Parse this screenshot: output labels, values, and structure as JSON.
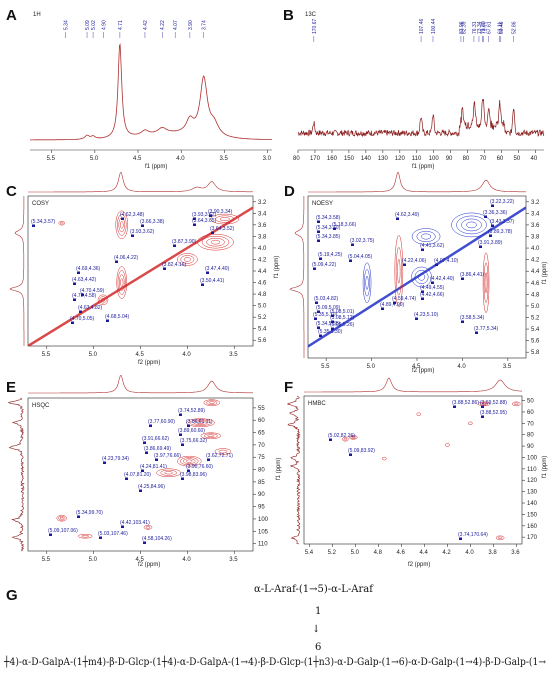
{
  "panels": {
    "A": {
      "letter": "A",
      "name": "1H",
      "xlabel": "f1 (ppm)",
      "ticks": [
        "5.5",
        "5.0",
        "4.5",
        "4.0",
        "3.5",
        "3.0"
      ],
      "shifts": [
        "5.34",
        "5.09",
        "5.02",
        "4.90",
        "4.71",
        "4.42",
        "4.22",
        "4.07",
        "3.90",
        "3.74"
      ]
    },
    "B": {
      "letter": "B",
      "name": "13C",
      "xlabel": "f1 (ppm)",
      "ticks": [
        "80",
        "170",
        "160",
        "150",
        "140",
        "130",
        "120",
        "110",
        "100",
        "90",
        "80",
        "70",
        "60",
        "50",
        "40"
      ],
      "shifts": [
        "170.67",
        "107.46",
        "100.44",
        "83.96",
        "82.39",
        "76.31",
        "73.34",
        "71.30",
        "70.60",
        "67.61",
        "61.11",
        "60.46",
        "52.86"
      ]
    },
    "C": {
      "letter": "C",
      "name": "COSY",
      "xlabel": "f2 (ppm)",
      "ylabel": "f1 (ppm)",
      "xticks": [
        "5.5",
        "5.0",
        "4.5",
        "4.0",
        "3.5"
      ],
      "yticks": [
        "3.2",
        "3.4",
        "3.6",
        "3.8",
        "4.0",
        "4.2",
        "4.4",
        "4.6",
        "4.8",
        "5.0",
        "5.2",
        "5.4",
        "5.6"
      ],
      "peaks": [
        "(5.34,3.57)",
        "(4.62,3.48)",
        "(3.66,3.38)",
        "(3.93,3.62)",
        "(3.64,3.65)",
        "(3.87,3.90)",
        "(4.06,4.22)",
        "(3.82,4.16)",
        "(3.47,4.40)",
        "(4.69,4.36)",
        "(4.63,4.42)",
        "(3.50,4.41)",
        "(4.72,4.58)",
        "(4.70,4.59)",
        "(4.63,4.82)",
        "(4.70,5.05)",
        "(4.68,5.04)",
        "(3.90,3.34)",
        "(3.93,3.62)",
        "(3.64,3.52)"
      ]
    },
    "D": {
      "letter": "D",
      "name": "NOESY",
      "xlabel": "f2 (ppm)",
      "ylabel": "f1 (ppm)",
      "xticks": [
        "5.5",
        "5.0",
        "4.5",
        "4.0",
        "3.5"
      ],
      "yticks": [
        "3.2",
        "3.4",
        "3.6",
        "3.8",
        "4.0",
        "4.2",
        "4.4",
        "4.6",
        "4.8",
        "5.0",
        "5.2",
        "5.4",
        "5.6",
        "5.8"
      ],
      "peaks": [
        "(3.22,3.22)",
        "(4.62,3.49)",
        "(5.34,3.58)",
        "(3.36,3.36)",
        "(3.43,3.37)",
        "(5.18,3.66)",
        "(5.34,3.70)",
        "(3.89,3.78)",
        "(5.34,3.85)",
        "(3.02,3.75)",
        "(3.91,3.89)",
        "(4.41,3.62)",
        "(5.19,4.25)",
        "(5.09,4.22)",
        "(5.04,4.05)",
        "(4.22,4.06)",
        "(4.07,4.10)",
        "(3.86,4.41)",
        "(4.42,4.40)",
        "(4.49,4.55)",
        "(4.42,4.66)",
        "(4.59,4.74)",
        "(5.03,4.82)",
        "(5.09,5.09)",
        "(5.35,5.10)",
        "(5.34,5.35)",
        "(5.08,5.01)",
        "(5.08,5.12)",
        "(5.09,5.26)",
        "(4.89,4.90)",
        "(5.35,5.30)",
        "(3.77,5.34)",
        "(3.58,5.34)",
        "(4.23,5.10)"
      ]
    },
    "E": {
      "letter": "E",
      "name": "HSQC",
      "xlabel": "f2 (ppm)",
      "ylabel": "f1 (ppm)",
      "xticks": [
        "5.5",
        "5.0",
        "4.5",
        "4.0",
        "3.5"
      ],
      "yticks": [
        "55",
        "60",
        "65",
        "70",
        "75",
        "80",
        "85",
        "90",
        "95",
        "100",
        "105",
        "110"
      ],
      "peaks": [
        "(3.74,52.89)",
        "(3.77,60.90)",
        "(3.86,61.11)",
        "(3.89,60.60)",
        "(3.91,66.62)",
        "(3.75,66.32)",
        "(3.86,69.49)",
        "(3.97,76.66)",
        "(4.23,79.34)",
        "(4.24,81.41)",
        "(3.90,76.60)",
        "(3.98,83.96)",
        "(4.07,81.20)",
        "(3.62,72.71)",
        "(4.25,84.96)",
        "(5.34,99.70)",
        "(4.42,103.41)",
        "(5.09,107.06)",
        "(5.03,107.46)",
        "(4.58,104.26)"
      ]
    },
    "F": {
      "letter": "F",
      "name": "HMBC",
      "xlabel": "f2 (ppm)",
      "ylabel": "f1 (ppm)",
      "xticks": [
        "5.4",
        "5.2",
        "5.0",
        "4.8",
        "4.6",
        "4.4",
        "4.2",
        "4.0",
        "3.8",
        "3.6"
      ],
      "yticks": [
        "50",
        "60",
        "70",
        "80",
        "90",
        "100",
        "110",
        "120",
        "130",
        "140",
        "150",
        "160",
        "170"
      ],
      "peaks": [
        "(3.88,52.86)",
        "(3.59,52.88)",
        "(3.88,52.95)",
        "(5.02,82.26)",
        "(5.09,83.92)",
        "(3.74,170.64)"
      ]
    },
    "G": {
      "letter": "G",
      "side_chain": "α-L-Araf-(1→5)-α-L-Araf",
      "link_1": "1",
      "link_arrow": "↓",
      "link_6": "6",
      "backbone": "┼4)-α-D-GalpA-(1┼m4)-β-D-Glcp-(1┼4)-α-D-GalpA-(1→4)-β-D-Glcp-(1┼n3)-α-D-Galp-(1→6)-α-D-Galp-(1→4)-β-D-Galp-(1→"
    }
  },
  "colors": {
    "spectrum": "#b03030",
    "contour_red": "#d42a2a",
    "contour_blue": "#2030c8",
    "label": "#1a1a9a"
  }
}
